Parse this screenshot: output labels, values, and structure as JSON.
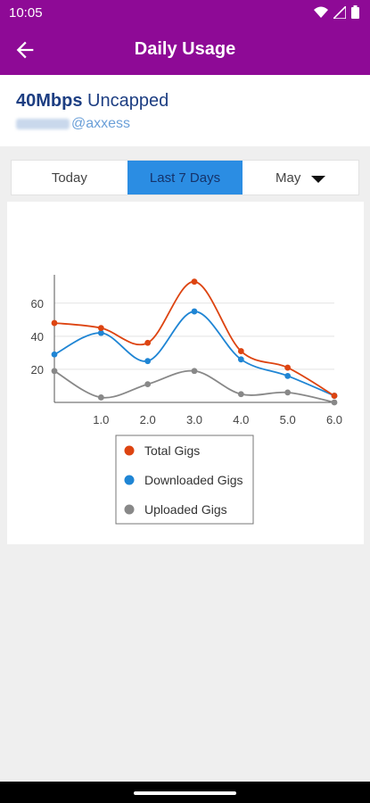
{
  "status_bar": {
    "time": "10:05",
    "icons": [
      "wifi-icon",
      "signal-icon",
      "battery-icon"
    ]
  },
  "app_bar": {
    "title": "Daily Usage",
    "back_icon": "back-arrow-icon"
  },
  "account": {
    "plan_speed": "40Mbps",
    "plan_type": "Uncapped",
    "username_suffix": "@axxess"
  },
  "tabs": [
    {
      "label": "Today",
      "active": false
    },
    {
      "label": "Last 7 Days",
      "active": true
    },
    {
      "label": "May",
      "active": false,
      "dropdown": true
    }
  ],
  "colors": {
    "brand": "#8e0a96",
    "active_tab": "#2b8de3",
    "total": "#dd4411",
    "downloaded": "#1f85d4",
    "uploaded": "#888888"
  },
  "chart_data": {
    "type": "line",
    "x": [
      0,
      1,
      2,
      3,
      4,
      5,
      6
    ],
    "x_tick_labels": [
      "1.0",
      "2.0",
      "3.0",
      "4.0",
      "5.0",
      "6.0"
    ],
    "y_tick_labels": [
      "20",
      "40",
      "60"
    ],
    "xlim": [
      0,
      6
    ],
    "ylim": [
      0,
      75
    ],
    "grid": true,
    "legend_position": "bottom",
    "series": [
      {
        "name": "Total Gigs",
        "values": [
          48,
          45,
          36,
          73,
          31,
          21,
          4
        ]
      },
      {
        "name": "Downloaded Gigs",
        "values": [
          29,
          42,
          25,
          55,
          26,
          16,
          4
        ]
      },
      {
        "name": "Uploaded Gigs",
        "values": [
          19,
          3,
          11,
          19,
          5,
          6,
          0
        ]
      }
    ]
  }
}
